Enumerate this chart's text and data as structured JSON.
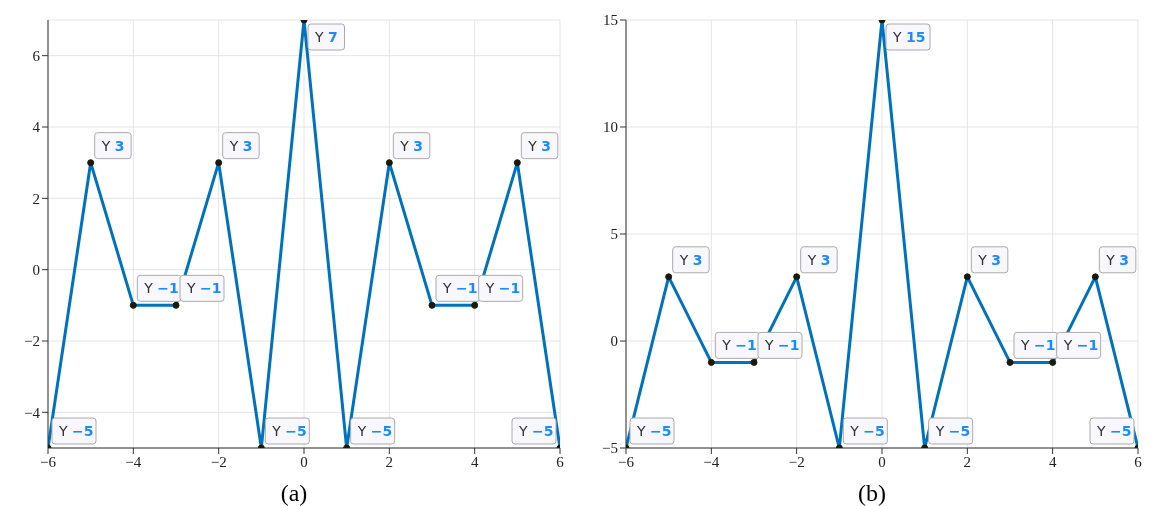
{
  "chart_data": [
    {
      "type": "line",
      "xlabel": "(a)",
      "x": [
        -6,
        -5,
        -4,
        -3,
        -2,
        -1,
        0,
        1,
        2,
        3,
        4,
        5,
        6
      ],
      "series": [
        {
          "color": "#0072bd",
          "values": [
            -5,
            3,
            -1,
            -1,
            3,
            -5,
            7,
            -5,
            3,
            -1,
            -1,
            3,
            -5
          ],
          "value_labels": [
            "Y −5",
            "Y 3",
            "Y −1",
            "Y −1",
            "Y 3",
            "Y −5",
            "Y 7",
            "Y −5",
            "Y 3",
            "Y −1",
            "Y −1",
            "Y 3",
            "Y −5"
          ]
        }
      ],
      "xlim": [
        -6,
        6
      ],
      "xticks": [
        {
          "value": -6,
          "label": "−6"
        },
        {
          "value": -4,
          "label": "−4"
        },
        {
          "value": -2,
          "label": "−2"
        },
        0,
        2,
        4,
        6
      ],
      "ylim": [
        -5,
        7
      ],
      "yticks": [
        {
          "value": -4,
          "label": "−4"
        },
        {
          "value": -2,
          "label": "−2"
        },
        0,
        2,
        4,
        6
      ],
      "grid": true,
      "marker": "circle",
      "line_style": "solid",
      "legend": false
    },
    {
      "type": "line",
      "xlabel": "(b)",
      "x": [
        -6,
        -5,
        -4,
        -3,
        -2,
        -1,
        0,
        1,
        2,
        3,
        4,
        5,
        6
      ],
      "series": [
        {
          "color": "#0072bd",
          "values": [
            -5,
            3,
            -1,
            -1,
            3,
            -5,
            15,
            -5,
            3,
            -1,
            -1,
            3,
            -5
          ],
          "value_labels": [
            "Y −5",
            "Y 3",
            "Y −1",
            "Y −1",
            "Y 3",
            "Y −5",
            "Y 15",
            "Y −5",
            "Y 3",
            "Y −1",
            "Y −1",
            "Y 3",
            "Y −5"
          ]
        }
      ],
      "xlim": [
        -6,
        6
      ],
      "xticks": [
        {
          "value": -6,
          "label": "−6"
        },
        {
          "value": -4,
          "label": "−4"
        },
        {
          "value": -2,
          "label": "−2"
        },
        0,
        2,
        4,
        6
      ],
      "ylim": [
        -5,
        15
      ],
      "yticks": [
        {
          "value": -5,
          "label": "−5"
        },
        0,
        5,
        10,
        15
      ],
      "grid": true,
      "marker": "circle",
      "line_style": "solid",
      "legend": false
    }
  ]
}
